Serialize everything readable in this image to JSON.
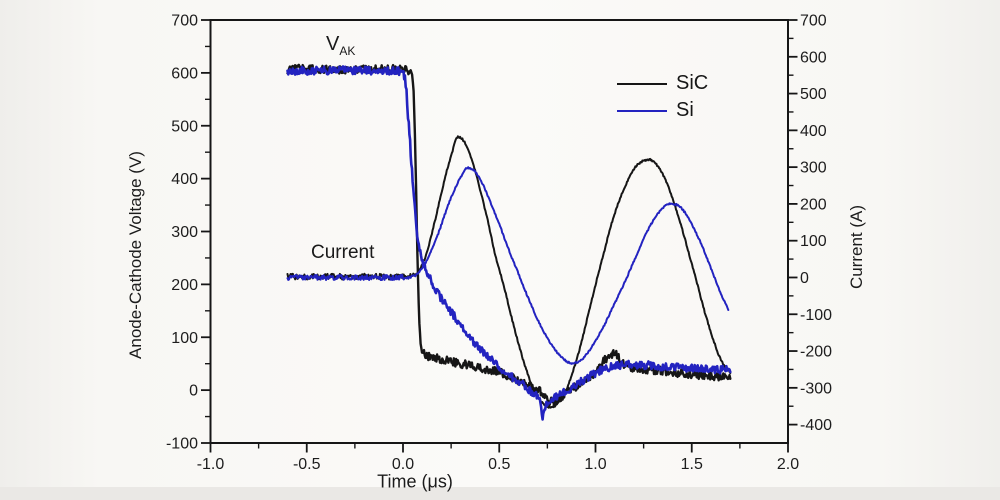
{
  "page": {
    "background": "#f8f7f4"
  },
  "chart_data": {
    "type": "line",
    "title": "",
    "x_axis": {
      "title": "Time (μs)",
      "min": -1.0,
      "max": 2.0,
      "major_ticks": [
        -1.0,
        -0.5,
        0.0,
        0.5,
        1.0,
        1.5,
        2.0
      ],
      "tick_labels": [
        "-1.0",
        "-0.5",
        "0.0",
        "0.5",
        "1.0",
        "1.5",
        "2.0"
      ],
      "minor_ticks": [
        -0.75,
        -0.25,
        0.25,
        0.75,
        1.25,
        1.75
      ]
    },
    "left_axis": {
      "title": "Anode-Cathode Voltage (V)",
      "min": -100,
      "max": 700,
      "major_ticks": [
        700,
        600,
        500,
        400,
        300,
        200,
        100,
        0,
        -100
      ],
      "minor_ticks": [
        650,
        550,
        450,
        350,
        250,
        150,
        50,
        -50
      ]
    },
    "right_axis": {
      "title": "Current (A)",
      "min": -450,
      "max": 700,
      "major_ticks": [
        700,
        600,
        500,
        400,
        300,
        200,
        100,
        0,
        -100,
        -200,
        -300,
        -400
      ],
      "minor_ticks": [
        650,
        550,
        450,
        350,
        250,
        150,
        50,
        -50,
        -150,
        -250,
        -350,
        -450
      ]
    },
    "legend": {
      "position": "inside-top-right",
      "entries": [
        {
          "label": "SiC",
          "color": "#161616"
        },
        {
          "label": "Si",
          "color": "#2323c0"
        }
      ]
    },
    "annotations": {
      "vak_main": "V",
      "vak_sub": "AK",
      "current_label": "Current"
    },
    "series": [
      {
        "id": "sic-voltage",
        "name": "SiC anode-cathode voltage",
        "device": "SiC",
        "axis": "voltage",
        "color": "#161616",
        "width": 2.4,
        "noise": {
          "t": [
            -0.6,
            1.7
          ],
          "amp": [
            8,
            8
          ]
        },
        "points": {
          "t": [
            -0.6,
            -0.45,
            -0.3,
            -0.15,
            0.0,
            0.04,
            0.055,
            0.065,
            0.075,
            0.085,
            0.095,
            0.12,
            0.2,
            0.3,
            0.4,
            0.5,
            0.58,
            0.66,
            0.72,
            0.77,
            0.81,
            0.86,
            0.92,
            1.0,
            1.06,
            1.1,
            1.14,
            1.2,
            1.3,
            1.45,
            1.6,
            1.7
          ],
          "v": [
            607,
            607,
            606,
            607,
            606,
            598,
            560,
            430,
            260,
            130,
            85,
            68,
            58,
            50,
            42,
            33,
            22,
            8,
            -5,
            -22,
            -18,
            -2,
            12,
            35,
            62,
            68,
            52,
            42,
            38,
            32,
            27,
            25
          ]
        }
      },
      {
        "id": "sic-current",
        "name": "SiC current",
        "device": "SiC",
        "axis": "current",
        "color": "#161616",
        "width": 2.0,
        "noise": {
          "t": [
            -0.6,
            0.0,
            0.08,
            1.7
          ],
          "amp": [
            8,
            8,
            2.5,
            2.5
          ]
        },
        "points": {
          "t": [
            -0.6,
            -0.4,
            -0.2,
            0.0,
            0.05,
            0.08,
            0.1,
            0.12,
            0.15,
            0.18,
            0.22,
            0.25,
            0.285,
            0.32,
            0.36,
            0.4,
            0.44,
            0.48,
            0.52,
            0.56,
            0.6,
            0.64,
            0.68,
            0.72,
            0.76,
            0.8,
            0.84,
            0.88,
            0.92,
            0.96,
            1.0,
            1.04,
            1.08,
            1.12,
            1.16,
            1.2,
            1.24,
            1.28,
            1.32,
            1.36,
            1.4,
            1.44,
            1.48,
            1.52,
            1.56,
            1.6,
            1.64,
            1.67,
            1.7
          ],
          "v": [
            2,
            2,
            2,
            3,
            6,
            14,
            35,
            62,
            120,
            185,
            275,
            330,
            382,
            368,
            315,
            240,
            155,
            60,
            -15,
            -100,
            -180,
            -250,
            -305,
            -338,
            -352,
            -345,
            -315,
            -260,
            -190,
            -105,
            -20,
            60,
            140,
            205,
            255,
            295,
            315,
            320,
            305,
            270,
            215,
            150,
            75,
            0,
            -80,
            -150,
            -210,
            -240,
            -258
          ]
        }
      },
      {
        "id": "si-voltage",
        "name": "Si anode-cathode voltage",
        "device": "Si",
        "axis": "voltage",
        "color": "#2323c0",
        "width": 2.6,
        "noise": {
          "t": [
            -0.6,
            1.7
          ],
          "amp": [
            7.5,
            7.5
          ]
        },
        "points": {
          "t": [
            -0.6,
            -0.45,
            -0.3,
            -0.15,
            -0.02,
            0.01,
            0.03,
            0.05,
            0.07,
            0.09,
            0.12,
            0.16,
            0.21,
            0.27,
            0.33,
            0.39,
            0.45,
            0.51,
            0.57,
            0.63,
            0.68,
            0.71,
            0.725,
            0.745,
            0.8,
            0.87,
            0.94,
            1.02,
            1.1,
            1.2,
            1.35,
            1.5,
            1.62,
            1.7
          ],
          "v": [
            604,
            604,
            605,
            604,
            603,
            588,
            500,
            400,
            310,
            258,
            228,
            196,
            168,
            138,
            108,
            82,
            60,
            40,
            24,
            8,
            -8,
            -18,
            -50,
            -28,
            -12,
            4,
            20,
            36,
            45,
            48,
            45,
            42,
            40,
            38
          ]
        }
      },
      {
        "id": "si-current",
        "name": "Si current",
        "device": "Si",
        "axis": "current",
        "color": "#2323c0",
        "width": 2.0,
        "noise": {
          "t": [
            -0.6,
            0.0,
            0.08,
            1.7
          ],
          "amp": [
            7,
            7,
            2.2,
            2.2
          ]
        },
        "points": {
          "t": [
            -0.6,
            -0.4,
            -0.2,
            0.02,
            0.06,
            0.1,
            0.14,
            0.18,
            0.22,
            0.26,
            0.3,
            0.335,
            0.37,
            0.41,
            0.45,
            0.5,
            0.55,
            0.6,
            0.65,
            0.7,
            0.75,
            0.8,
            0.85,
            0.88,
            0.92,
            0.96,
            1.0,
            1.05,
            1.1,
            1.15,
            1.2,
            1.25,
            1.3,
            1.34,
            1.38,
            1.42,
            1.46,
            1.5,
            1.55,
            1.6,
            1.64,
            1.69
          ],
          "v": [
            0,
            0,
            0,
            0,
            5,
            25,
            65,
            115,
            175,
            230,
            272,
            298,
            290,
            258,
            210,
            145,
            75,
            10,
            -55,
            -115,
            -165,
            -203,
            -228,
            -233,
            -226,
            -205,
            -172,
            -125,
            -70,
            -15,
            45,
            105,
            155,
            183,
            200,
            198,
            180,
            145,
            90,
            25,
            -30,
            -88
          ]
        }
      }
    ]
  }
}
